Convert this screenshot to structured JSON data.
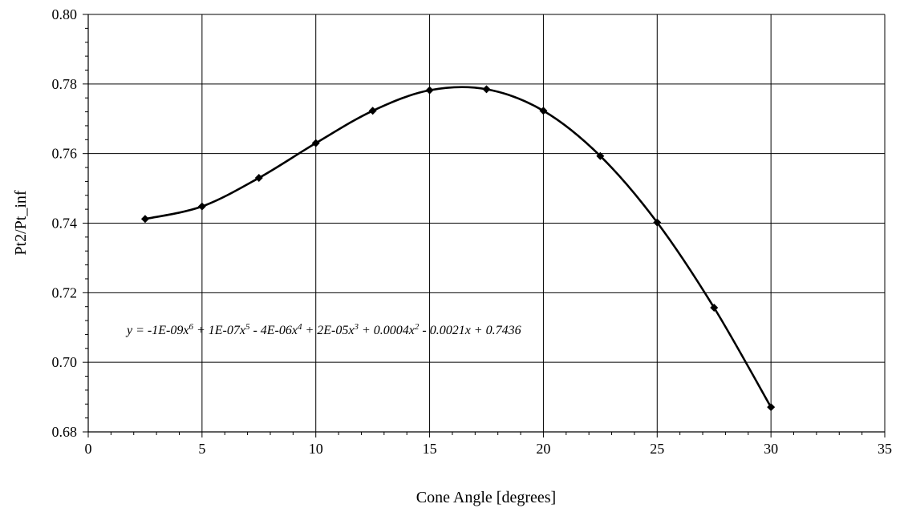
{
  "chart_data": {
    "type": "scatter",
    "xlabel": "Cone Angle [degrees]",
    "ylabel": "Pt2/Pt_inf",
    "xlim": [
      0,
      35
    ],
    "ylim": [
      0.68,
      0.8
    ],
    "x_ticks": [
      "0",
      "5",
      "10",
      "15",
      "20",
      "25",
      "30",
      "35"
    ],
    "y_ticks": [
      "0.68",
      "0.70",
      "0.72",
      "0.74",
      "0.76",
      "0.78",
      "0.80"
    ],
    "grid": true,
    "marker": "diamond",
    "series": [
      {
        "x": [
          2.5,
          5,
          7.5,
          10,
          12.5,
          15,
          17.5,
          20,
          22.5,
          25,
          27.5,
          30
        ],
        "y": [
          0.7412,
          0.7448,
          0.753,
          0.763,
          0.7723,
          0.7782,
          0.7785,
          0.7723,
          0.7593,
          0.7402,
          0.7157,
          0.6871
        ]
      }
    ],
    "trendline": {
      "type": "polynomial",
      "order": 6,
      "equation_parts": [
        "y = -1E-09x",
        "6",
        " + 1E-07x",
        "5",
        " - 4E-06x",
        "4",
        " + 2E-05x",
        "3",
        " + 0.0004x",
        "2",
        " - 0.0021x + 0.7436"
      ]
    }
  }
}
